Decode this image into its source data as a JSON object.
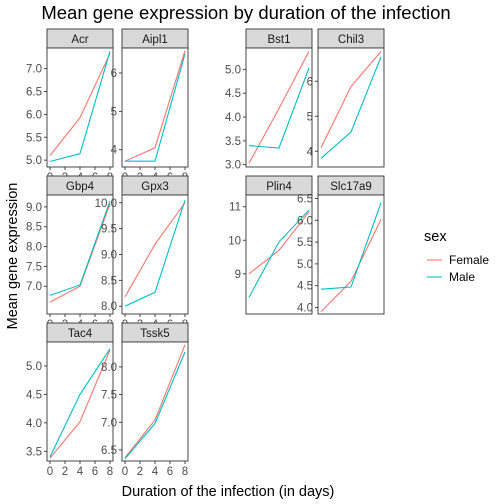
{
  "chart_data": {
    "type": "line",
    "title": "Mean gene expression by duration of the infection",
    "xlabel": "Duration of the infection (in days)",
    "ylabel": "Mean gene expression",
    "x": [
      0,
      2,
      4,
      6,
      8
    ],
    "x_ticks": [
      "0",
      "2",
      "4",
      "6",
      "8"
    ],
    "xlim": [
      -0.4,
      8.4
    ],
    "legend": {
      "title": "sex",
      "position": "right",
      "entries": [
        {
          "name": "Female",
          "color": "#F8766D"
        },
        {
          "name": "Male",
          "color": "#00BFC4"
        }
      ]
    },
    "facets": [
      {
        "gene": "Acr",
        "ylim": [
          4.85,
          7.45
        ],
        "yticks": [
          "5.0",
          "5.5",
          "6.0",
          "6.5",
          "7.0"
        ],
        "yvals": [
          5.0,
          5.5,
          6.0,
          6.5,
          7.0
        ],
        "series": [
          {
            "name": "Female",
            "x": [
              0,
              4,
              8
            ],
            "y": [
              5.1,
              5.93,
              7.33
            ]
          },
          {
            "name": "Male",
            "x": [
              0,
              4,
              8
            ],
            "y": [
              4.97,
              5.14,
              7.38
            ]
          }
        ]
      },
      {
        "gene": "Aipl1",
        "ylim": [
          3.55,
          6.65
        ],
        "yticks": [
          "4",
          "5",
          "6"
        ],
        "yvals": [
          4,
          5,
          6
        ],
        "series": [
          {
            "name": "Female",
            "x": [
              0,
              4,
              8
            ],
            "y": [
              3.7,
              4.05,
              6.58
            ]
          },
          {
            "name": "Male",
            "x": [
              0,
              4,
              8
            ],
            "y": [
              3.7,
              3.7,
              6.5
            ]
          }
        ]
      },
      {
        "gene": "Bst1",
        "ylim": [
          2.95,
          5.45
        ],
        "yticks": [
          "3.0",
          "3.5",
          "4.0",
          "4.5",
          "5.0"
        ],
        "yvals": [
          3.0,
          3.5,
          4.0,
          4.5,
          5.0
        ],
        "series": [
          {
            "name": "Female",
            "x": [
              0,
              4,
              8
            ],
            "y": [
              3.03,
              4.18,
              5.38
            ]
          },
          {
            "name": "Male",
            "x": [
              0,
              4,
              8
            ],
            "y": [
              3.4,
              3.35,
              5.03
            ]
          }
        ]
      },
      {
        "gene": "Chil3",
        "ylim": [
          3.55,
          6.95
        ],
        "yticks": [
          "4",
          "5",
          "6"
        ],
        "yvals": [
          4,
          5,
          6
        ],
        "series": [
          {
            "name": "Female",
            "x": [
              0,
              4,
              8
            ],
            "y": [
              4.1,
              5.85,
              6.85
            ]
          },
          {
            "name": "Male",
            "x": [
              0,
              4,
              8
            ],
            "y": [
              3.8,
              4.55,
              6.7
            ]
          }
        ]
      },
      {
        "gene": "Gbp4",
        "ylim": [
          6.3,
          9.3
        ],
        "yticks": [
          "7.0",
          "7.5",
          "8.0",
          "8.5",
          "9.0"
        ],
        "yvals": [
          7.0,
          7.5,
          8.0,
          8.5,
          9.0
        ],
        "series": [
          {
            "name": "Female",
            "x": [
              0,
              4,
              8
            ],
            "y": [
              6.6,
              7.0,
              9.08
            ]
          },
          {
            "name": "Male",
            "x": [
              0,
              4,
              8
            ],
            "y": [
              6.77,
              7.03,
              9.15
            ]
          }
        ]
      },
      {
        "gene": "Gpx3",
        "ylim": [
          7.85,
          10.15
        ],
        "yticks": [
          "8.0",
          "8.5",
          "9.0",
          "9.5",
          "10.0"
        ],
        "yvals": [
          8.0,
          8.5,
          9.0,
          9.5,
          10.0
        ],
        "series": [
          {
            "name": "Female",
            "x": [
              0,
              4,
              8
            ],
            "y": [
              8.18,
              9.2,
              10.0
            ]
          },
          {
            "name": "Male",
            "x": [
              0,
              4,
              8
            ],
            "y": [
              8.0,
              8.27,
              10.05
            ]
          }
        ]
      },
      {
        "gene": "Plin4",
        "ylim": [
          7.8,
          11.35
        ],
        "yticks": [
          "9",
          "10",
          "11"
        ],
        "yvals": [
          9,
          10,
          11
        ],
        "series": [
          {
            "name": "Female",
            "x": [
              0,
              4,
              8
            ],
            "y": [
              9.0,
              9.7,
              10.85
            ]
          },
          {
            "name": "Male",
            "x": [
              0,
              4,
              8
            ],
            "y": [
              8.3,
              9.95,
              10.9
            ]
          }
        ]
      },
      {
        "gene": "Slc17a9",
        "ylim": [
          3.85,
          6.58
        ],
        "yticks": [
          "4.0",
          "4.5",
          "5.0",
          "5.5",
          "6.0",
          "6.5"
        ],
        "yvals": [
          4.0,
          4.5,
          5.0,
          5.5,
          6.0,
          6.5
        ],
        "series": [
          {
            "name": "Female",
            "x": [
              0,
              4,
              8
            ],
            "y": [
              3.9,
              4.6,
              6.02
            ]
          },
          {
            "name": "Male",
            "x": [
              0,
              4,
              8
            ],
            "y": [
              4.42,
              4.47,
              6.4
            ]
          }
        ]
      },
      {
        "gene": "Tac4",
        "ylim": [
          3.33,
          5.42
        ],
        "yticks": [
          "3.5",
          "4.0",
          "4.5",
          "5.0"
        ],
        "yvals": [
          3.5,
          4.0,
          4.5,
          5.0
        ],
        "series": [
          {
            "name": "Female",
            "x": [
              0,
              4,
              8
            ],
            "y": [
              3.38,
              4.02,
              5.28
            ]
          },
          {
            "name": "Male",
            "x": [
              0,
              4,
              8
            ],
            "y": [
              3.4,
              4.5,
              5.3
            ]
          }
        ]
      },
      {
        "gene": "Tssk5",
        "ylim": [
          6.3,
          8.45
        ],
        "yticks": [
          "6.5",
          "7.0",
          "7.5",
          "8.0"
        ],
        "yvals": [
          6.5,
          7.0,
          7.5,
          8.0
        ],
        "series": [
          {
            "name": "Female",
            "x": [
              0,
              4,
              8
            ],
            "y": [
              6.36,
              7.04,
              8.4
            ]
          },
          {
            "name": "Male",
            "x": [
              0,
              4,
              8
            ],
            "y": [
              6.34,
              6.98,
              8.27
            ]
          }
        ]
      }
    ]
  }
}
